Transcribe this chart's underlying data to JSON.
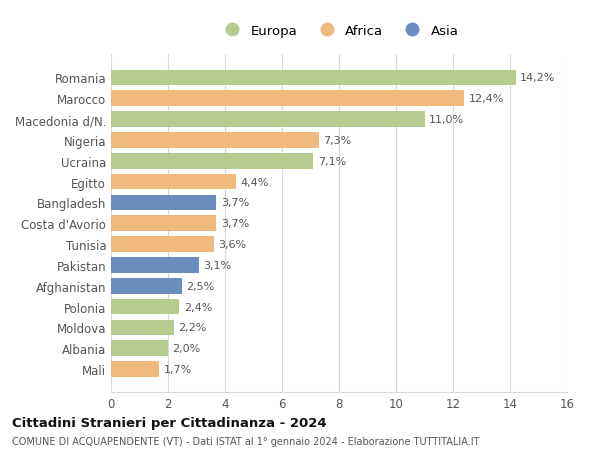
{
  "categories": [
    "Romania",
    "Marocco",
    "Macedonia d/N.",
    "Nigeria",
    "Ucraina",
    "Egitto",
    "Bangladesh",
    "Costa d'Avorio",
    "Tunisia",
    "Pakistan",
    "Afghanistan",
    "Polonia",
    "Moldova",
    "Albania",
    "Mali"
  ],
  "values": [
    14.2,
    12.4,
    11.0,
    7.3,
    7.1,
    4.4,
    3.7,
    3.7,
    3.6,
    3.1,
    2.5,
    2.4,
    2.2,
    2.0,
    1.7
  ],
  "labels": [
    "14,2%",
    "12,4%",
    "11,0%",
    "7,3%",
    "7,1%",
    "4,4%",
    "3,7%",
    "3,7%",
    "3,6%",
    "3,1%",
    "2,5%",
    "2,4%",
    "2,2%",
    "2,0%",
    "1,7%"
  ],
  "continents": [
    "Europa",
    "Africa",
    "Europa",
    "Africa",
    "Europa",
    "Africa",
    "Asia",
    "Africa",
    "Africa",
    "Asia",
    "Asia",
    "Europa",
    "Europa",
    "Europa",
    "Africa"
  ],
  "colors": {
    "Europa": "#b5cc8e",
    "Africa": "#f0b97d",
    "Asia": "#6b8cbe"
  },
  "xlim": [
    0,
    16
  ],
  "xticks": [
    0,
    2,
    4,
    6,
    8,
    10,
    12,
    14,
    16
  ],
  "title": "Cittadini Stranieri per Cittadinanza - 2024",
  "subtitle": "COMUNE DI ACQUAPENDENTE (VT) - Dati ISTAT al 1° gennaio 2024 - Elaborazione TUTTITALIA.IT",
  "background_color": "#ffffff",
  "grid_color": "#d8d8d8",
  "bar_height": 0.75
}
